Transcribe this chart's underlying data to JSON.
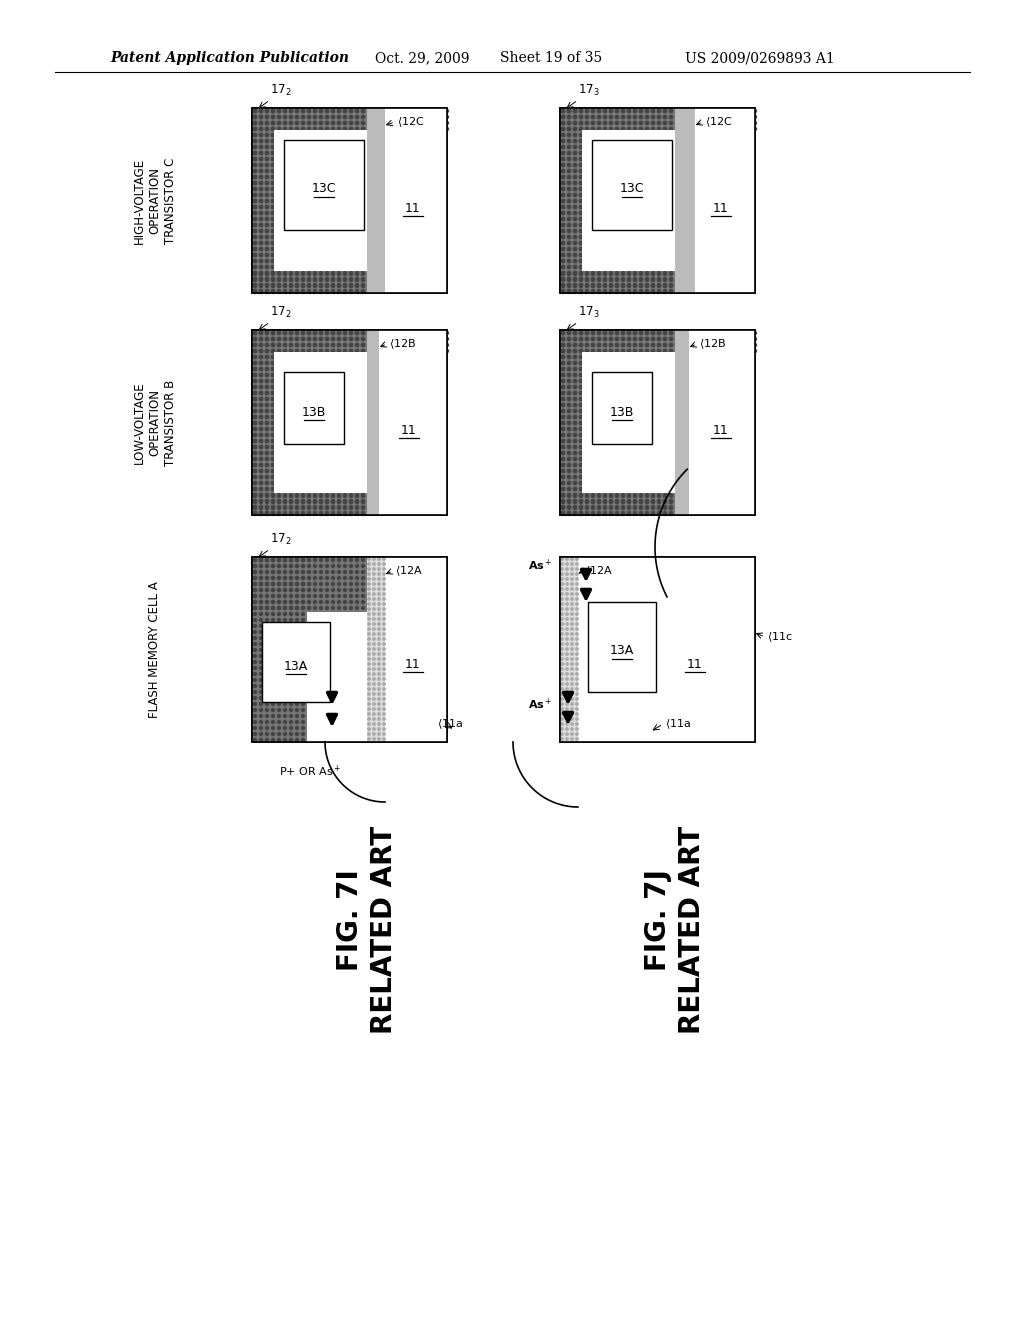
{
  "bg_color": "#ffffff",
  "header_text": "Patent Application Publication",
  "header_date": "Oct. 29, 2009",
  "header_sheet": "Sheet 19 of 35",
  "header_patent": "US 2009/0269893 A1",
  "dark_fill": "#666666",
  "dot_fill": "#cccccc",
  "light_stripe": "#bbbbbb",
  "white": "#ffffff",
  "black": "#000000"
}
